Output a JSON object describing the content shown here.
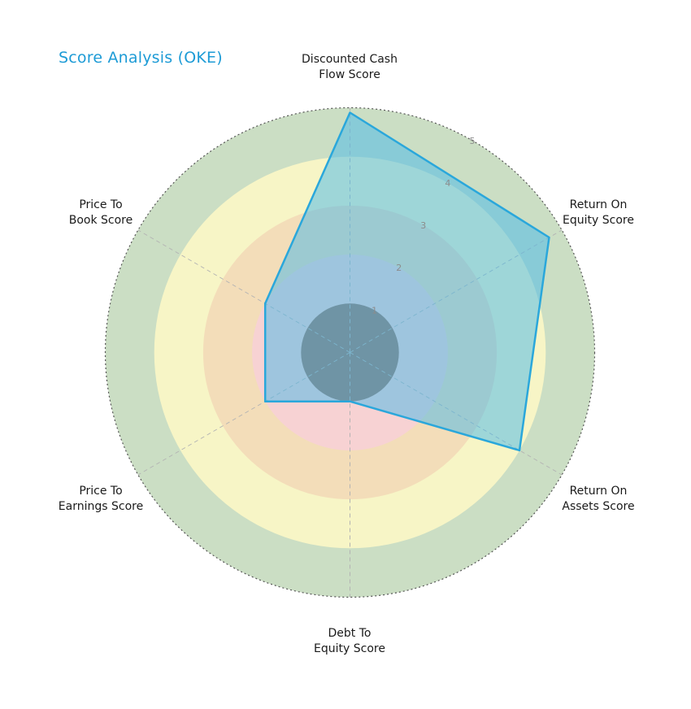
{
  "title": "Score Analysis (OKE)",
  "title_color": "#1d9bd6",
  "chart_data": {
    "type": "radar",
    "title": "Score Analysis (OKE)",
    "categories": [
      "Discounted Cash\nFlow Score",
      "Return On\nEquity Score",
      "Return On\nAssets Score",
      "Debt To\nEquity Score",
      "Price To\nEarnings Score",
      "Price To\nBook Score"
    ],
    "series": [
      {
        "name": "OKE",
        "values": [
          4.9,
          4.7,
          4.0,
          1.0,
          2.0,
          2.0
        ]
      }
    ],
    "r_ticks": [
      "1",
      "2",
      "3",
      "4",
      "5"
    ],
    "r_max": 5,
    "ring_colors_outer_to_inner": [
      "#cbdec4",
      "#f7f5c6",
      "#f3ddb9",
      "#f7d2d3",
      "#997060"
    ],
    "series_fill": "rgba(69,184,234,0.5)",
    "series_stroke": "#2aa7db",
    "grid": {
      "spoke_color": "#b3b3b3",
      "outline_color": "#555555",
      "tick_color": "#8c8c8c"
    }
  }
}
